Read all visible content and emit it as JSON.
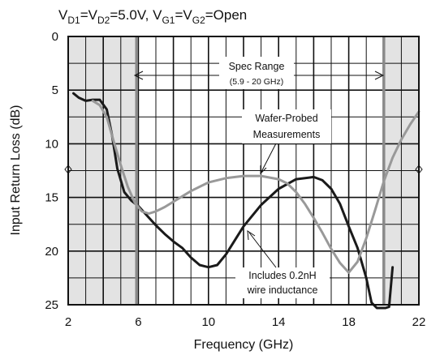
{
  "chart_data": {
    "type": "line",
    "title_parts": {
      "v": "V",
      "d1": "D1",
      "eq1": "=V",
      "d2": "D2",
      "val1": "=5.0V, V",
      "g1": "G1",
      "eq2": "=V",
      "g2": "G2",
      "val2": "=Open"
    },
    "xlabel": "Frequency (GHz)",
    "ylabel": "Input Return Loss (dB)",
    "xlim": [
      2,
      22
    ],
    "ylim": [
      0,
      25
    ],
    "y_inverted": true,
    "x_ticks": [
      "2",
      "6",
      "10",
      "14",
      "18",
      "22"
    ],
    "y_ticks": [
      "0",
      "5",
      "10",
      "15",
      "20",
      "25"
    ],
    "grid": true,
    "shaded_regions": [
      [
        2,
        5.9
      ],
      [
        20,
        22
      ]
    ],
    "spec_lines_x": [
      5.9,
      20
    ],
    "series": [
      {
        "color": "#1a1a1a",
        "x": [
          2.3,
          2.6,
          3.0,
          3.4,
          3.8,
          4.2,
          4.5,
          4.8,
          5.2,
          5.6,
          6.0,
          6.5,
          7.0,
          7.5,
          8.0,
          8.5,
          9.0,
          9.5,
          10.0,
          10.5,
          11.0,
          12.0,
          13.0,
          14.0,
          15.0,
          16.0,
          16.5,
          17.0,
          17.5,
          18.0,
          18.5,
          19.0,
          19.3,
          19.6,
          19.9,
          20.1,
          20.3,
          20.5
        ],
        "y": [
          5.3,
          5.7,
          6.0,
          5.9,
          5.9,
          6.8,
          9.2,
          12.3,
          14.5,
          15.3,
          15.8,
          16.7,
          17.6,
          18.4,
          19.1,
          19.7,
          20.6,
          21.3,
          21.5,
          21.3,
          20.3,
          17.7,
          15.7,
          14.2,
          13.3,
          13.1,
          13.4,
          14.2,
          15.6,
          17.7,
          19.7,
          22.5,
          24.8,
          25.3,
          25.3,
          25.3,
          25.2,
          21.5
        ]
      },
      {
        "color": "#999999",
        "x": [
          3.4,
          3.8,
          4.2,
          4.6,
          5.0,
          5.4,
          5.8,
          6.2,
          6.6,
          7.0,
          7.5,
          8.0,
          8.5,
          9.0,
          10.0,
          11.0,
          12.0,
          13.0,
          14.0,
          14.5,
          15.0,
          15.5,
          16.0,
          16.5,
          17.0,
          17.5,
          18.0,
          18.5,
          19.0,
          19.5,
          20.0,
          20.5,
          21.0,
          21.5,
          22.0
        ],
        "y": [
          6.0,
          6.4,
          7.5,
          9.8,
          12.0,
          14.0,
          15.5,
          16.3,
          16.5,
          16.3,
          15.9,
          15.4,
          14.9,
          14.4,
          13.6,
          13.2,
          13.0,
          13.0,
          13.3,
          13.7,
          14.5,
          15.6,
          16.9,
          18.3,
          19.8,
          21.1,
          22.0,
          21.0,
          18.8,
          16.2,
          13.5,
          11.3,
          9.6,
          8.2,
          7.0
        ]
      }
    ],
    "annotations": {
      "spec_range": "Spec Range",
      "spec_range_sub": "(5.9 - 20 GHz)",
      "wafer_line1": "Wafer-Probed",
      "wafer_line2": "Measurements",
      "includes_line1": "Includes 0.2nH",
      "includes_line2": "wire inductance"
    }
  }
}
